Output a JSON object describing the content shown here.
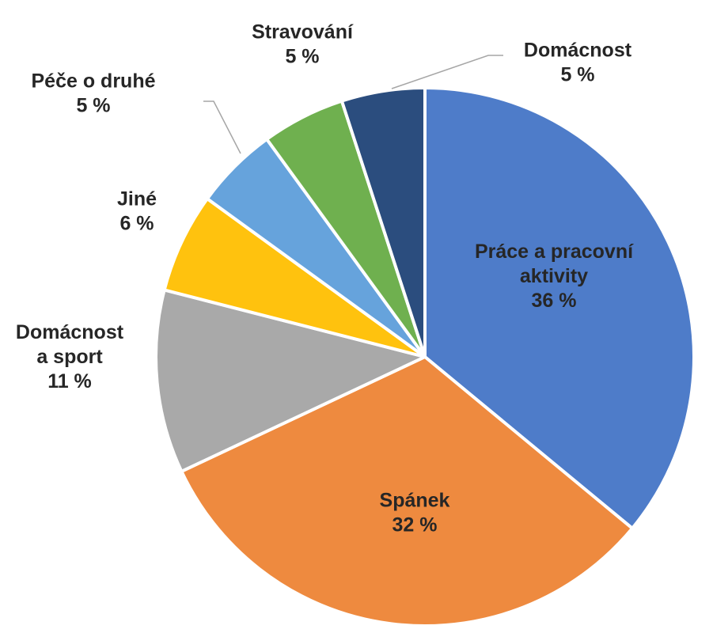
{
  "chart_data": {
    "type": "pie",
    "title": "",
    "slices": [
      {
        "label_lines": [
          "Práce a pracovní",
          "aktivity"
        ],
        "value_label": "36 %",
        "value": 36,
        "color": "#4E7CC9"
      },
      {
        "label_lines": [
          "Spánek"
        ],
        "value_label": "32 %",
        "value": 32,
        "color": "#EE8A3F"
      },
      {
        "label_lines": [
          "Domácnost",
          "a sport"
        ],
        "value_label": "11 %",
        "value": 11,
        "color": "#A9A9A9"
      },
      {
        "label_lines": [
          "Jiné"
        ],
        "value_label": "6 %",
        "value": 6,
        "color": "#FFC20E"
      },
      {
        "label_lines": [
          "Péče o druhé"
        ],
        "value_label": "5 %",
        "value": 5,
        "color": "#66A3DC"
      },
      {
        "label_lines": [
          "Stravování"
        ],
        "value_label": "5 %",
        "value": 5,
        "color": "#6FB04F"
      },
      {
        "label_lines": [
          "Domácnost"
        ],
        "value_label": "5 %",
        "value": 5,
        "color": "#2B4D7E"
      }
    ]
  }
}
